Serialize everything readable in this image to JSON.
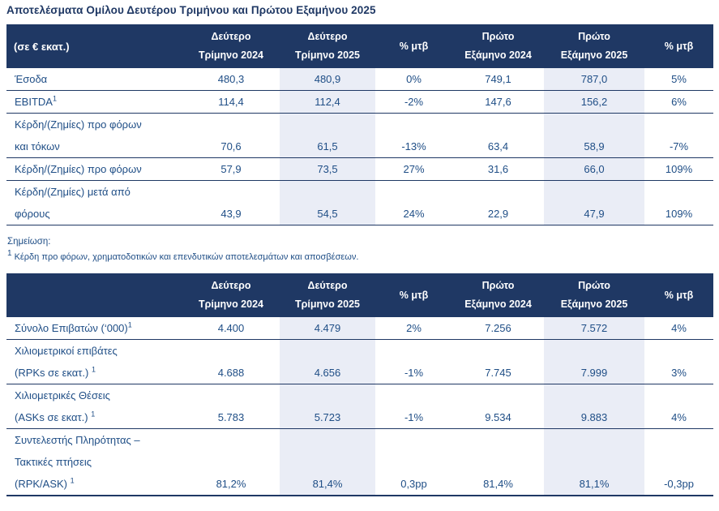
{
  "page": {
    "title": "Αποτελέσματα Ομίλου Δευτέρου Τριμήνου και Πρώτου Εξαμήνου 2025"
  },
  "colors": {
    "header_bg": "#1F3864",
    "body_text": "#1F4E86",
    "shaded_column": "#EAEDF6",
    "row_border": "#1F3864",
    "title_text": "#1F3864"
  },
  "financial_table": {
    "first_header": "(σε € εκατ.)",
    "columns": [
      {
        "lines": [
          "Δεύτερο",
          "Τρίμηνο 2024"
        ]
      },
      {
        "lines": [
          "Δεύτερο",
          "Τρίμηνο 2025"
        ],
        "shaded": true
      },
      {
        "lines": [
          "% μτβ"
        ]
      },
      {
        "lines": [
          "Πρώτο",
          "Εξάμηνο 2024"
        ]
      },
      {
        "lines": [
          "Πρώτο",
          "Εξάμηνο 2025"
        ],
        "shaded": true
      },
      {
        "lines": [
          "% μτβ"
        ]
      }
    ],
    "rows": [
      {
        "label_lines": [
          "Έσοδα"
        ],
        "sup": "",
        "values": [
          "480,3",
          "480,9",
          "0%",
          "749,1",
          "787,0",
          "5%"
        ]
      },
      {
        "label_lines": [
          "EBITDA"
        ],
        "sup": "1",
        "values": [
          "114,4",
          "112,4",
          "-2%",
          "147,6",
          "156,2",
          "6%"
        ]
      },
      {
        "label_lines": [
          "Κέρδη/(Ζημίες) προ φόρων",
          "και τόκων"
        ],
        "sup": "",
        "values": [
          "70,6",
          "61,5",
          "-13%",
          "63,4",
          "58,9",
          "-7%"
        ]
      },
      {
        "label_lines": [
          "Κέρδη/(Ζημίες) προ φόρων"
        ],
        "sup": "",
        "values": [
          "57,9",
          "73,5",
          "27%",
          "31,6",
          "66,0",
          "109%"
        ]
      },
      {
        "label_lines": [
          "Κέρδη/(Ζημίες) μετά από",
          "φόρους"
        ],
        "sup": "",
        "values": [
          "43,9",
          "54,5",
          "24%",
          "22,9",
          "47,9",
          "109%"
        ]
      }
    ]
  },
  "note": {
    "heading": "Σημείωση:",
    "sup": "1",
    "text": "Κέρδη προ φόρων, χρηματοδοτικών και επενδυτικών αποτελεσμάτων και αποσβέσεων."
  },
  "traffic_table": {
    "first_header": "",
    "columns": [
      {
        "lines": [
          "Δεύτερο",
          "Τρίμηνο 2024"
        ]
      },
      {
        "lines": [
          "Δεύτερο",
          "Τρίμηνο 2025"
        ],
        "shaded": true
      },
      {
        "lines": [
          "% μτβ"
        ]
      },
      {
        "lines": [
          "Πρώτο",
          "Εξάμηνο 2024"
        ]
      },
      {
        "lines": [
          "Πρώτο",
          "Εξάμηνο 2025"
        ],
        "shaded": true
      },
      {
        "lines": [
          "% μτβ"
        ]
      }
    ],
    "rows": [
      {
        "label_lines": [
          "Σύνολο Επιβατών (‘000)"
        ],
        "sup": "1",
        "values": [
          "4.400",
          "4.479",
          "2%",
          "7.256",
          "7.572",
          "4%"
        ]
      },
      {
        "label_lines": [
          "Χιλιομετρικοί επιβάτες",
          "(RPKs σε εκατ.) "
        ],
        "sup": "1",
        "values": [
          "4.688",
          "4.656",
          "-1%",
          "7.745",
          "7.999",
          "3%"
        ]
      },
      {
        "label_lines": [
          "Χιλιομετρικές Θέσεις",
          "(ASKs σε εκατ.) "
        ],
        "sup": "1",
        "values": [
          "5.783",
          "5.723",
          "-1%",
          "9.534",
          "9.883",
          "4%"
        ]
      },
      {
        "label_lines": [
          "Συντελεστής Πληρότητας –",
          "Τακτικές πτήσεις",
          "(RPK/ASK) "
        ],
        "sup": "1",
        "values": [
          "81,2%",
          "81,4%",
          "0,3pp",
          "81,4%",
          "81,1%",
          "-0,3pp"
        ]
      }
    ]
  },
  "column_value_names": [
    "q2-2024",
    "q2-2025",
    "pct-chg-qtr",
    "h1-2024",
    "h1-2025",
    "pct-chg-half"
  ]
}
